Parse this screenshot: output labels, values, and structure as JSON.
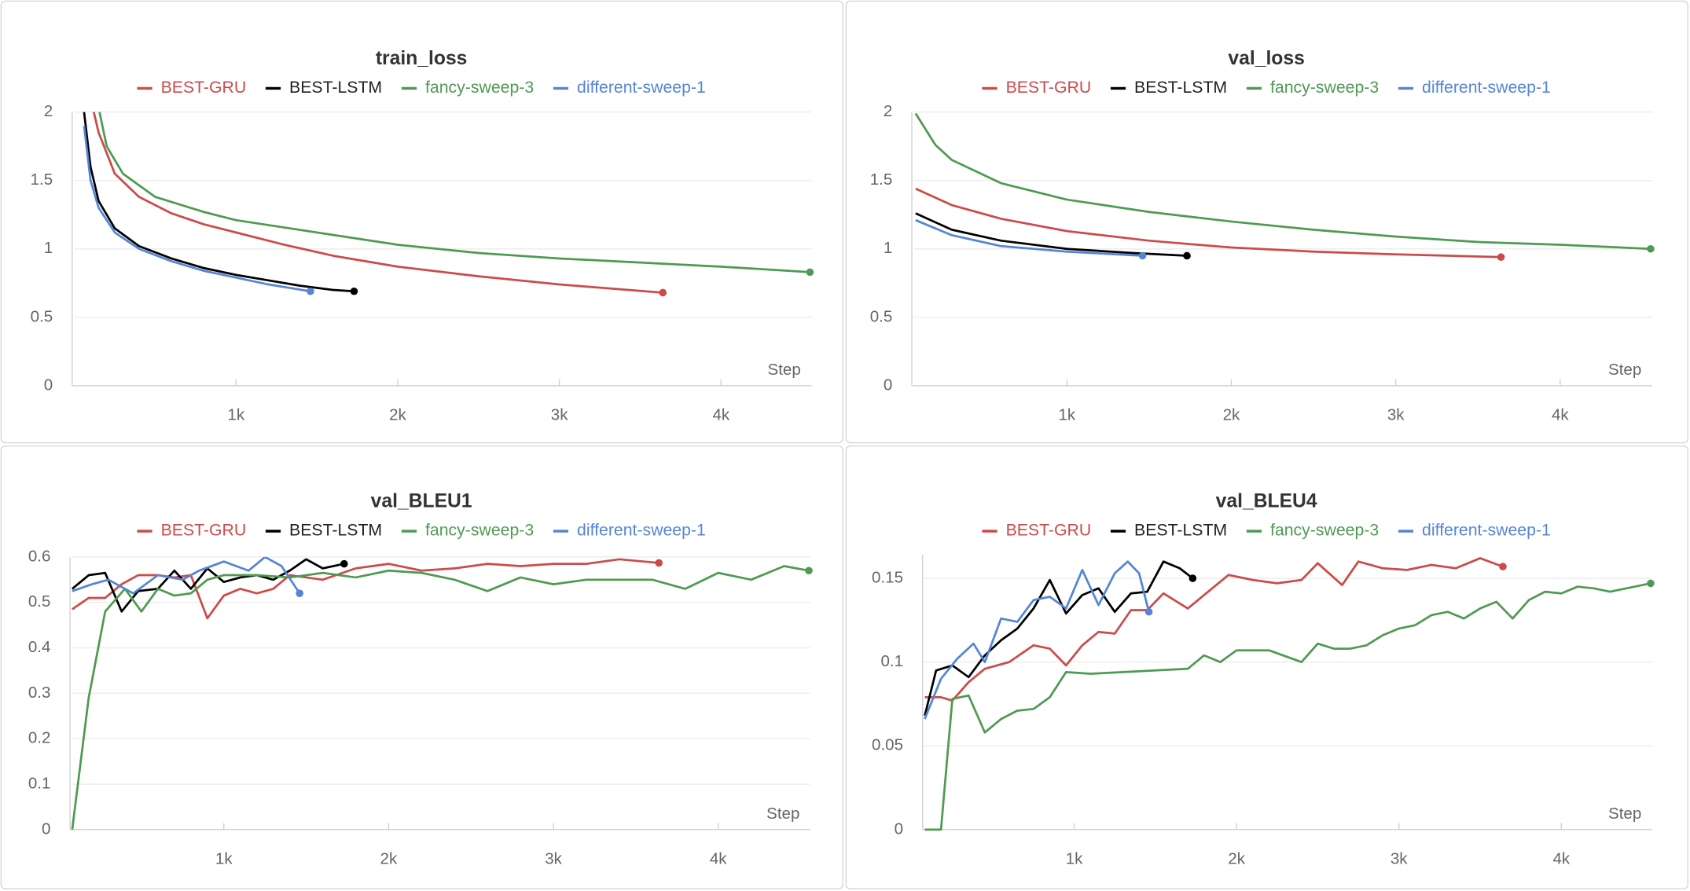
{
  "chart_data": [
    {
      "type": "line",
      "title": "train_loss",
      "x_label": "Step",
      "grid": true,
      "xlim": [
        0,
        4560
      ],
      "xticks": [
        {
          "value": 1000,
          "label": "1k"
        },
        {
          "value": 2000,
          "label": "2k"
        },
        {
          "value": 3000,
          "label": "3k"
        },
        {
          "value": 4000,
          "label": "4k"
        }
      ],
      "ylim": [
        0,
        2
      ],
      "yticks": [
        0,
        0.5,
        1,
        1.5,
        2
      ],
      "series": [
        {
          "name": "BEST-GRU",
          "color": "#cd4a4a",
          "x": [
            80,
            150,
            250,
            400,
            600,
            800,
            1000,
            1300,
            1600,
            2000,
            2500,
            3000,
            3640
          ],
          "values": [
            2.2,
            1.85,
            1.55,
            1.38,
            1.26,
            1.18,
            1.12,
            1.03,
            0.95,
            0.87,
            0.8,
            0.74,
            0.68
          ]
        },
        {
          "name": "BEST-LSTM",
          "color": "#000000",
          "x": [
            60,
            100,
            150,
            250,
            400,
            600,
            800,
            1000,
            1200,
            1400,
            1600,
            1730
          ],
          "values": [
            2.0,
            1.6,
            1.35,
            1.15,
            1.02,
            0.93,
            0.86,
            0.81,
            0.77,
            0.73,
            0.7,
            0.69
          ]
        },
        {
          "name": "fancy-sweep-3",
          "color": "#4f9a52",
          "x": [
            120,
            200,
            300,
            500,
            800,
            1000,
            1500,
            2000,
            2500,
            3000,
            3500,
            4000,
            4550
          ],
          "values": [
            2.2,
            1.75,
            1.55,
            1.38,
            1.27,
            1.21,
            1.12,
            1.03,
            0.97,
            0.93,
            0.9,
            0.87,
            0.83
          ]
        },
        {
          "name": "different-sweep-1",
          "color": "#5585d6",
          "x": [
            60,
            100,
            150,
            250,
            400,
            600,
            800,
            1000,
            1200,
            1460
          ],
          "values": [
            1.9,
            1.5,
            1.3,
            1.12,
            1.0,
            0.91,
            0.84,
            0.79,
            0.74,
            0.69
          ]
        }
      ]
    },
    {
      "type": "line",
      "title": "val_loss",
      "x_label": "Step",
      "grid": true,
      "xlim": [
        70,
        4560
      ],
      "xticks": [
        {
          "value": 1000,
          "label": "1k"
        },
        {
          "value": 2000,
          "label": "2k"
        },
        {
          "value": 3000,
          "label": "3k"
        },
        {
          "value": 4000,
          "label": "4k"
        }
      ],
      "ylim": [
        0,
        2
      ],
      "yticks": [
        0,
        0.5,
        1,
        1.5,
        2
      ],
      "series": [
        {
          "name": "BEST-GRU",
          "color": "#cd4a4a",
          "x": [
            80,
            300,
            600,
            1000,
            1500,
            2000,
            2500,
            3000,
            3640
          ],
          "values": [
            1.44,
            1.32,
            1.22,
            1.13,
            1.06,
            1.01,
            0.98,
            0.96,
            0.94
          ]
        },
        {
          "name": "BEST-LSTM",
          "color": "#000000",
          "x": [
            80,
            300,
            600,
            1000,
            1400,
            1730
          ],
          "values": [
            1.26,
            1.14,
            1.06,
            1.0,
            0.97,
            0.95
          ]
        },
        {
          "name": "fancy-sweep-3",
          "color": "#4f9a52",
          "x": [
            80,
            200,
            300,
            600,
            1000,
            1500,
            2000,
            2500,
            3000,
            3500,
            4000,
            4550
          ],
          "values": [
            1.99,
            1.76,
            1.65,
            1.48,
            1.36,
            1.27,
            1.2,
            1.14,
            1.09,
            1.05,
            1.03,
            1.0
          ]
        },
        {
          "name": "different-sweep-1",
          "color": "#5585d6",
          "x": [
            80,
            300,
            600,
            1000,
            1460
          ],
          "values": [
            1.21,
            1.1,
            1.02,
            0.98,
            0.95
          ]
        }
      ]
    },
    {
      "type": "line",
      "title": "val_BLEU1",
      "x_label": "Step",
      "grid": true,
      "xlim": [
        80,
        4560
      ],
      "xticks": [
        {
          "value": 1000,
          "label": "1k"
        },
        {
          "value": 2000,
          "label": "2k"
        },
        {
          "value": 3000,
          "label": "3k"
        },
        {
          "value": 4000,
          "label": "4k"
        }
      ],
      "ylim": [
        0,
        0.6
      ],
      "yticks": [
        0,
        0.1,
        0.2,
        0.3,
        0.4,
        0.5,
        0.6
      ],
      "series": [
        {
          "name": "BEST-GRU",
          "color": "#cd4a4a",
          "x": [
            80,
            180,
            280,
            380,
            480,
            600,
            700,
            800,
            900,
            1000,
            1100,
            1200,
            1300,
            1400,
            1500,
            1600,
            1800,
            2000,
            2200,
            2400,
            2600,
            2800,
            3000,
            3200,
            3400,
            3640
          ],
          "values": [
            0.485,
            0.51,
            0.51,
            0.54,
            0.56,
            0.56,
            0.555,
            0.56,
            0.465,
            0.515,
            0.53,
            0.52,
            0.53,
            0.56,
            0.555,
            0.55,
            0.575,
            0.585,
            0.57,
            0.575,
            0.585,
            0.58,
            0.585,
            0.585,
            0.595,
            0.587
          ]
        },
        {
          "name": "BEST-LSTM",
          "color": "#000000",
          "x": [
            80,
            180,
            280,
            380,
            480,
            600,
            700,
            800,
            900,
            1000,
            1100,
            1200,
            1300,
            1400,
            1500,
            1600,
            1730
          ],
          "values": [
            0.53,
            0.56,
            0.565,
            0.48,
            0.525,
            0.53,
            0.57,
            0.53,
            0.575,
            0.545,
            0.555,
            0.56,
            0.55,
            0.57,
            0.595,
            0.575,
            0.585
          ]
        },
        {
          "name": "fancy-sweep-3",
          "color": "#4f9a52",
          "x": [
            80,
            180,
            280,
            400,
            500,
            600,
            700,
            800,
            900,
            1000,
            1200,
            1400,
            1600,
            1800,
            2000,
            2200,
            2400,
            2600,
            2800,
            3000,
            3200,
            3400,
            3600,
            3800,
            4000,
            4200,
            4400,
            4550
          ],
          "values": [
            0.0,
            0.29,
            0.48,
            0.53,
            0.48,
            0.53,
            0.515,
            0.52,
            0.55,
            0.56,
            0.56,
            0.555,
            0.565,
            0.555,
            0.57,
            0.565,
            0.55,
            0.525,
            0.555,
            0.54,
            0.55,
            0.55,
            0.55,
            0.53,
            0.565,
            0.55,
            0.58,
            0.57
          ]
        },
        {
          "name": "different-sweep-1",
          "color": "#5585d6",
          "x": [
            80,
            200,
            300,
            450,
            600,
            750,
            850,
            1000,
            1150,
            1250,
            1350,
            1460
          ],
          "values": [
            0.525,
            0.54,
            0.55,
            0.52,
            0.56,
            0.55,
            0.57,
            0.59,
            0.57,
            0.6,
            0.58,
            0.52
          ]
        }
      ]
    },
    {
      "type": "line",
      "title": "val_BLEU4",
      "x_label": "Step",
      "grid": true,
      "xlim": [
        80,
        4560
      ],
      "xticks": [
        {
          "value": 1000,
          "label": "1k"
        },
        {
          "value": 2000,
          "label": "2k"
        },
        {
          "value": 3000,
          "label": "3k"
        },
        {
          "value": 4000,
          "label": "4k"
        }
      ],
      "ylim": [
        0,
        0.164
      ],
      "yticks": [
        0,
        0.05,
        0.1,
        0.15
      ],
      "series": [
        {
          "name": "BEST-GRU",
          "color": "#cd4a4a",
          "x": [
            80,
            180,
            250,
            350,
            450,
            600,
            750,
            850,
            950,
            1050,
            1150,
            1250,
            1350,
            1450,
            1550,
            1700,
            1800,
            1950,
            2100,
            2250,
            2400,
            2500,
            2650,
            2750,
            2900,
            3050,
            3200,
            3350,
            3500,
            3640
          ],
          "values": [
            0.079,
            0.079,
            0.077,
            0.088,
            0.096,
            0.1,
            0.11,
            0.108,
            0.098,
            0.11,
            0.118,
            0.117,
            0.131,
            0.131,
            0.141,
            0.132,
            0.14,
            0.152,
            0.149,
            0.147,
            0.149,
            0.159,
            0.146,
            0.16,
            0.156,
            0.155,
            0.158,
            0.156,
            0.162,
            0.157
          ]
        },
        {
          "name": "BEST-LSTM",
          "color": "#000000",
          "x": [
            80,
            150,
            250,
            350,
            450,
            550,
            650,
            750,
            850,
            950,
            1050,
            1150,
            1250,
            1350,
            1450,
            1550,
            1650,
            1730
          ],
          "values": [
            0.068,
            0.095,
            0.098,
            0.091,
            0.104,
            0.113,
            0.12,
            0.132,
            0.149,
            0.129,
            0.14,
            0.144,
            0.13,
            0.141,
            0.142,
            0.16,
            0.156,
            0.15
          ]
        },
        {
          "name": "fancy-sweep-3",
          "color": "#4f9a52",
          "x": [
            80,
            180,
            250,
            350,
            450,
            550,
            650,
            750,
            850,
            950,
            1100,
            1300,
            1500,
            1700,
            1800,
            1900,
            2000,
            2200,
            2400,
            2500,
            2600,
            2700,
            2800,
            2900,
            3000,
            3100,
            3200,
            3300,
            3400,
            3500,
            3600,
            3700,
            3800,
            3900,
            4000,
            4100,
            4200,
            4300,
            4400,
            4550
          ],
          "values": [
            0,
            0,
            0.078,
            0.08,
            0.058,
            0.066,
            0.071,
            0.072,
            0.079,
            0.094,
            0.093,
            0.094,
            0.095,
            0.096,
            0.104,
            0.1,
            0.107,
            0.107,
            0.1,
            0.111,
            0.108,
            0.108,
            0.11,
            0.116,
            0.12,
            0.122,
            0.128,
            0.13,
            0.126,
            0.132,
            0.136,
            0.126,
            0.137,
            0.142,
            0.141,
            0.145,
            0.144,
            0.142,
            0.144,
            0.147
          ]
        },
        {
          "name": "different-sweep-1",
          "color": "#5585d6",
          "x": [
            80,
            180,
            280,
            380,
            450,
            550,
            650,
            750,
            850,
            950,
            1050,
            1150,
            1250,
            1330,
            1400,
            1460
          ],
          "values": [
            0.066,
            0.09,
            0.102,
            0.111,
            0.1,
            0.126,
            0.124,
            0.137,
            0.139,
            0.132,
            0.155,
            0.134,
            0.153,
            0.16,
            0.153,
            0.13
          ]
        }
      ]
    }
  ]
}
